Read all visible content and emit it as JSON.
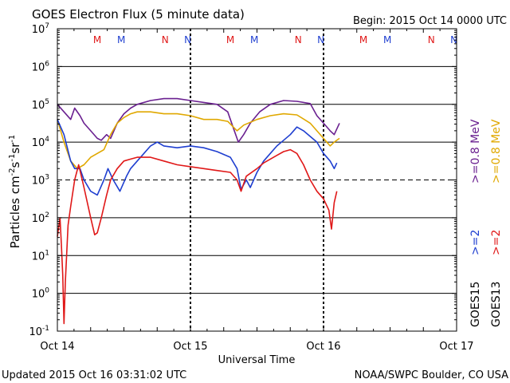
{
  "chart_data": {
    "type": "line",
    "title": "GOES Electron Flux (5 minute data)",
    "begin_label": "Begin: 2015 Oct 14 0000 UTC",
    "xlabel": "Universal Time",
    "ylabel_parts": [
      "Particles cm",
      "-2",
      "s",
      "-1",
      "sr",
      "-1"
    ],
    "ylabel_title": "Particles cm-2 s-1 sr-1",
    "y_scale": "log",
    "ylim_exp": [
      -1,
      7
    ],
    "y_ticks": [
      {
        "exp": -1,
        "base": "10",
        "sup": "-1"
      },
      {
        "exp": 0,
        "base": "10",
        "sup": "0"
      },
      {
        "exp": 1,
        "base": "10",
        "sup": "1"
      },
      {
        "exp": 2,
        "base": "10",
        "sup": "2"
      },
      {
        "exp": 3,
        "base": "10",
        "sup": "3"
      },
      {
        "exp": 4,
        "base": "10",
        "sup": "4"
      },
      {
        "exp": 5,
        "base": "10",
        "sup": "5"
      },
      {
        "exp": 6,
        "base": "10",
        "sup": "6"
      },
      {
        "exp": 7,
        "base": "10",
        "sup": "7"
      }
    ],
    "xlim_days": [
      0,
      3
    ],
    "x_ticks": [
      {
        "day": 0,
        "label": "Oct 14"
      },
      {
        "day": 1,
        "label": "Oct 15"
      },
      {
        "day": 2,
        "label": "Oct 16"
      },
      {
        "day": 3,
        "label": "Oct 17"
      }
    ],
    "dashed_reference_exp": 3,
    "grid": true,
    "markers": [
      {
        "day": 0.3,
        "text": "M",
        "satellite": "GOES13"
      },
      {
        "day": 0.48,
        "text": "M",
        "satellite": "GOES15"
      },
      {
        "day": 0.81,
        "text": "N",
        "satellite": "GOES13"
      },
      {
        "day": 0.98,
        "text": "N",
        "satellite": "GOES15"
      },
      {
        "day": 1.3,
        "text": "M",
        "satellite": "GOES13"
      },
      {
        "day": 1.48,
        "text": "M",
        "satellite": "GOES15"
      },
      {
        "day": 1.81,
        "text": "N",
        "satellite": "GOES13"
      },
      {
        "day": 1.98,
        "text": "N",
        "satellite": "GOES15"
      },
      {
        "day": 2.3,
        "text": "M",
        "satellite": "GOES13"
      },
      {
        "day": 2.48,
        "text": "M",
        "satellite": "GOES15"
      },
      {
        "day": 2.81,
        "text": "N",
        "satellite": "GOES13"
      },
      {
        "day": 2.98,
        "text": "N",
        "satellite": "GOES15"
      }
    ],
    "legend": {
      "position": "right",
      "goes15": {
        "name": "GOES15",
        "entries": [
          {
            "text": ">=2",
            "color": "#1f3fd0"
          },
          {
            "text": ">=0.8 MeV",
            "color": "#6a2090"
          }
        ]
      },
      "goes13": {
        "name": "GOES13",
        "entries": [
          {
            "text": ">=2",
            "color": "#e01818"
          },
          {
            "text": ">=0.8 MeV",
            "color": "#e0a800"
          }
        ]
      }
    },
    "series": [
      {
        "satellite": "GOES15",
        "energy": ">=0.8 MeV",
        "color": "#6a2090",
        "points": [
          [
            0,
            5.0
          ],
          [
            0.05,
            4.8
          ],
          [
            0.1,
            4.6
          ],
          [
            0.13,
            4.9
          ],
          [
            0.17,
            4.7
          ],
          [
            0.2,
            4.5
          ],
          [
            0.25,
            4.3
          ],
          [
            0.3,
            4.1
          ],
          [
            0.33,
            4.05
          ],
          [
            0.37,
            4.2
          ],
          [
            0.4,
            4.1
          ],
          [
            0.45,
            4.5
          ],
          [
            0.5,
            4.75
          ],
          [
            0.55,
            4.9
          ],
          [
            0.6,
            5.0
          ],
          [
            0.7,
            5.1
          ],
          [
            0.8,
            5.15
          ],
          [
            0.9,
            5.15
          ],
          [
            1.0,
            5.1
          ],
          [
            1.1,
            5.05
          ],
          [
            1.2,
            5.0
          ],
          [
            1.28,
            4.8
          ],
          [
            1.32,
            4.4
          ],
          [
            1.36,
            4.0
          ],
          [
            1.4,
            4.2
          ],
          [
            1.45,
            4.5
          ],
          [
            1.52,
            4.8
          ],
          [
            1.6,
            5.0
          ],
          [
            1.7,
            5.1
          ],
          [
            1.8,
            5.08
          ],
          [
            1.9,
            5.02
          ],
          [
            1.95,
            4.7
          ],
          [
            2.0,
            4.5
          ],
          [
            2.05,
            4.3
          ],
          [
            2.08,
            4.2
          ],
          [
            2.12,
            4.5
          ]
        ]
      },
      {
        "satellite": "GOES13",
        "energy": ">=0.8 MeV",
        "color": "#e0a800",
        "points": [
          [
            0,
            4.6
          ],
          [
            0.05,
            4.0
          ],
          [
            0.1,
            3.5
          ],
          [
            0.15,
            3.3
          ],
          [
            0.2,
            3.4
          ],
          [
            0.25,
            3.6
          ],
          [
            0.3,
            3.7
          ],
          [
            0.35,
            3.8
          ],
          [
            0.4,
            4.2
          ],
          [
            0.45,
            4.5
          ],
          [
            0.5,
            4.65
          ],
          [
            0.55,
            4.75
          ],
          [
            0.6,
            4.8
          ],
          [
            0.7,
            4.8
          ],
          [
            0.8,
            4.75
          ],
          [
            0.9,
            4.75
          ],
          [
            1.0,
            4.7
          ],
          [
            1.1,
            4.6
          ],
          [
            1.2,
            4.6
          ],
          [
            1.28,
            4.55
          ],
          [
            1.35,
            4.3
          ],
          [
            1.4,
            4.45
          ],
          [
            1.5,
            4.6
          ],
          [
            1.6,
            4.7
          ],
          [
            1.7,
            4.75
          ],
          [
            1.8,
            4.72
          ],
          [
            1.9,
            4.5
          ],
          [
            2.0,
            4.1
          ],
          [
            2.05,
            3.9
          ],
          [
            2.08,
            4.0
          ],
          [
            2.12,
            4.1
          ]
        ]
      },
      {
        "satellite": "GOES15",
        "energy": ">=2 MeV",
        "color": "#1f3fd0",
        "points": [
          [
            0,
            4.6
          ],
          [
            0.05,
            4.2
          ],
          [
            0.1,
            3.5
          ],
          [
            0.13,
            3.3
          ],
          [
            0.17,
            3.3
          ],
          [
            0.2,
            3.0
          ],
          [
            0.25,
            2.7
          ],
          [
            0.3,
            2.6
          ],
          [
            0.35,
            3.0
          ],
          [
            0.38,
            3.3
          ],
          [
            0.42,
            3.0
          ],
          [
            0.47,
            2.7
          ],
          [
            0.52,
            3.1
          ],
          [
            0.55,
            3.3
          ],
          [
            0.6,
            3.5
          ],
          [
            0.65,
            3.7
          ],
          [
            0.7,
            3.9
          ],
          [
            0.75,
            4.0
          ],
          [
            0.8,
            3.9
          ],
          [
            0.9,
            3.85
          ],
          [
            1.0,
            3.9
          ],
          [
            1.1,
            3.85
          ],
          [
            1.2,
            3.75
          ],
          [
            1.3,
            3.6
          ],
          [
            1.35,
            3.3
          ],
          [
            1.38,
            2.75
          ],
          [
            1.42,
            3.0
          ],
          [
            1.45,
            2.8
          ],
          [
            1.5,
            3.2
          ],
          [
            1.55,
            3.5
          ],
          [
            1.6,
            3.7
          ],
          [
            1.65,
            3.9
          ],
          [
            1.7,
            4.05
          ],
          [
            1.75,
            4.2
          ],
          [
            1.8,
            4.4
          ],
          [
            1.85,
            4.3
          ],
          [
            1.9,
            4.15
          ],
          [
            1.95,
            4.0
          ],
          [
            2.0,
            3.7
          ],
          [
            2.05,
            3.5
          ],
          [
            2.08,
            3.3
          ],
          [
            2.1,
            3.45
          ]
        ]
      },
      {
        "satellite": "GOES13",
        "energy": ">=2 MeV",
        "color": "#e01818",
        "points": [
          [
            0,
            1.5
          ],
          [
            0.02,
            2.0
          ],
          [
            0.03,
            1.3
          ],
          [
            0.04,
            0.5
          ],
          [
            0.05,
            -0.8
          ],
          [
            0.06,
            0.3
          ],
          [
            0.08,
            1.8
          ],
          [
            0.1,
            2.3
          ],
          [
            0.13,
            3.0
          ],
          [
            0.16,
            3.4
          ],
          [
            0.2,
            2.8
          ],
          [
            0.25,
            2.0
          ],
          [
            0.28,
            1.55
          ],
          [
            0.3,
            1.6
          ],
          [
            0.33,
            2.0
          ],
          [
            0.37,
            2.6
          ],
          [
            0.4,
            3.0
          ],
          [
            0.45,
            3.3
          ],
          [
            0.5,
            3.5
          ],
          [
            0.55,
            3.55
          ],
          [
            0.6,
            3.6
          ],
          [
            0.7,
            3.6
          ],
          [
            0.8,
            3.5
          ],
          [
            0.9,
            3.4
          ],
          [
            1.0,
            3.35
          ],
          [
            1.1,
            3.3
          ],
          [
            1.2,
            3.25
          ],
          [
            1.3,
            3.2
          ],
          [
            1.35,
            3.0
          ],
          [
            1.38,
            2.7
          ],
          [
            1.42,
            3.1
          ],
          [
            1.5,
            3.3
          ],
          [
            1.55,
            3.45
          ],
          [
            1.6,
            3.55
          ],
          [
            1.65,
            3.65
          ],
          [
            1.7,
            3.75
          ],
          [
            1.75,
            3.8
          ],
          [
            1.8,
            3.7
          ],
          [
            1.85,
            3.4
          ],
          [
            1.9,
            3.0
          ],
          [
            1.95,
            2.7
          ],
          [
            2.0,
            2.5
          ],
          [
            2.04,
            2.2
          ],
          [
            2.06,
            1.7
          ],
          [
            2.08,
            2.4
          ],
          [
            2.1,
            2.7
          ]
        ]
      }
    ]
  },
  "footer": {
    "updated": "Updated 2015 Oct 16 03:31:02 UTC",
    "credit": "NOAA/SWPC Boulder, CO USA"
  }
}
